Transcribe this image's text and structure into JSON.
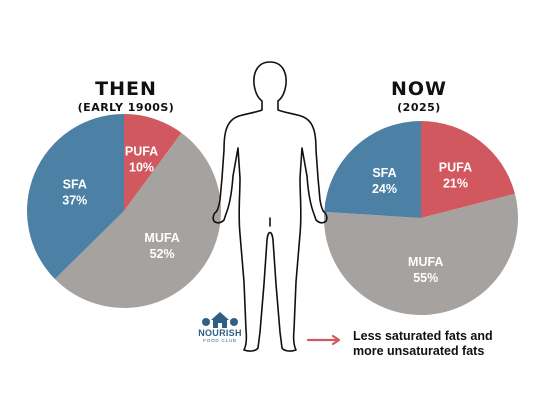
{
  "colors": {
    "pufa": "#d1585e",
    "sfa": "#4c80a5",
    "mufa": "#a6a2a0",
    "arrow": "#d1585e",
    "figure_stroke": "#111111"
  },
  "chart_data": [
    {
      "type": "pie",
      "title": "THEN",
      "subtitle": "(EARLY 1900S)",
      "slices": [
        {
          "label": "PUFA",
          "value": 10,
          "display": "10%"
        },
        {
          "label": "MUFA",
          "value": 52,
          "display": "52%"
        },
        {
          "label": "SFA",
          "value": 37,
          "display": "37%"
        }
      ]
    },
    {
      "type": "pie",
      "title": "NOW",
      "subtitle": "(2025)",
      "slices": [
        {
          "label": "PUFA",
          "value": 21,
          "display": "21%"
        },
        {
          "label": "MUFA",
          "value": 55,
          "display": "55%"
        },
        {
          "label": "SFA",
          "value": 24,
          "display": "24%"
        }
      ]
    }
  ],
  "logo": {
    "name": "NOURISH",
    "sub": "FOOD CLUB"
  },
  "caption": {
    "line1": "Less saturated fats and",
    "line2": "more unsaturated fats"
  }
}
